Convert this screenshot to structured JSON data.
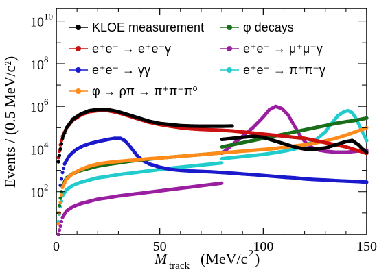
{
  "chart_data": {
    "type": "scatter",
    "xlabel": {
      "main": "M",
      "sub": "track",
      "unit": "(MeV/c",
      "unit_sup": "2",
      "unit_close": ")"
    },
    "ylabel": "Events / (0.5 MeV/c²)",
    "xlim": [
      0,
      150
    ],
    "ylim_log10": [
      0,
      10.6
    ],
    "y_scale": "log",
    "x_ticks": [
      "0",
      "50",
      "100",
      "150"
    ],
    "y_ticks": [
      {
        "base": "10",
        "exp": "2"
      },
      {
        "base": "10",
        "exp": "4"
      },
      {
        "base": "10",
        "exp": "6"
      },
      {
        "base": "10",
        "exp": "8"
      },
      {
        "base": "10",
        "exp": "10"
      }
    ],
    "legend": [
      {
        "name": "KLOE measurement",
        "color": "#000000"
      },
      {
        "name": "φ decays",
        "color": "#1a6e1a"
      },
      {
        "name": "e⁺e⁻ → e⁺e⁻γ",
        "color": "#cc1111"
      },
      {
        "name": "e⁺e⁻ → μ⁺μ⁻γ",
        "color": "#9a1fa0"
      },
      {
        "name": "e⁺e⁻ → γγ",
        "color": "#1a1acc"
      },
      {
        "name": "e⁺e⁻ → π⁺π⁻γ",
        "color": "#22cccc"
      },
      {
        "name": "φ → ρπ → π⁺π⁻π⁰",
        "color": "#ff8c1a"
      }
    ],
    "series": [
      {
        "key": "kloe",
        "color": "#000000",
        "points": [
          [
            1,
            3.4
          ],
          [
            2,
            4.0
          ],
          [
            3,
            4.5
          ],
          [
            5,
            5.0
          ],
          [
            8,
            5.4
          ],
          [
            12,
            5.65
          ],
          [
            16,
            5.8
          ],
          [
            20,
            5.85
          ],
          [
            25,
            5.85
          ],
          [
            30,
            5.75
          ],
          [
            35,
            5.6
          ],
          [
            40,
            5.45
          ],
          [
            45,
            5.3
          ],
          [
            50,
            5.2
          ],
          [
            55,
            5.15
          ],
          [
            60,
            5.1
          ],
          [
            65,
            5.08
          ],
          [
            70,
            5.07
          ],
          [
            75,
            5.07
          ],
          [
            80,
            5.07
          ],
          [
            85,
            5.08
          ]
        ]
      },
      {
        "key": "ee_eeg",
        "color": "#cc1111",
        "points": [
          [
            1,
            3.6
          ],
          [
            2,
            4.2
          ],
          [
            3,
            4.6
          ],
          [
            5,
            5.0
          ],
          [
            8,
            5.35
          ],
          [
            12,
            5.6
          ],
          [
            16,
            5.75
          ],
          [
            20,
            5.8
          ],
          [
            25,
            5.8
          ],
          [
            30,
            5.7
          ],
          [
            35,
            5.55
          ],
          [
            40,
            5.4
          ],
          [
            45,
            5.25
          ],
          [
            50,
            5.15
          ],
          [
            55,
            5.07
          ],
          [
            60,
            5.0
          ],
          [
            65,
            4.95
          ],
          [
            70,
            4.92
          ],
          [
            75,
            4.9
          ],
          [
            80,
            4.88
          ],
          [
            85,
            4.85
          ],
          [
            90,
            4.8
          ],
          [
            95,
            4.75
          ],
          [
            100,
            4.7
          ],
          [
            105,
            4.65
          ],
          [
            110,
            4.6
          ],
          [
            115,
            4.55
          ],
          [
            120,
            4.5
          ],
          [
            125,
            4.4
          ],
          [
            130,
            4.3
          ],
          [
            135,
            4.2
          ],
          [
            140,
            4.1
          ],
          [
            145,
            3.95
          ],
          [
            150,
            3.8
          ]
        ]
      },
      {
        "key": "gg",
        "color": "#1a1acc",
        "points": [
          [
            2,
            2.3
          ],
          [
            3,
            2.9
          ],
          [
            4,
            3.3
          ],
          [
            6,
            3.65
          ],
          [
            8,
            3.85
          ],
          [
            10,
            4.0
          ],
          [
            13,
            4.15
          ],
          [
            16,
            4.25
          ],
          [
            20,
            4.35
          ],
          [
            25,
            4.45
          ],
          [
            28,
            4.5
          ],
          [
            31,
            4.5
          ],
          [
            33,
            4.4
          ],
          [
            35,
            4.2
          ],
          [
            37,
            3.95
          ],
          [
            39,
            3.7
          ],
          [
            42,
            3.45
          ],
          [
            45,
            3.3
          ],
          [
            50,
            3.15
          ],
          [
            55,
            3.05
          ],
          [
            60,
            3.0
          ],
          [
            65,
            2.97
          ],
          [
            70,
            2.95
          ],
          [
            75,
            2.93
          ],
          [
            80,
            2.9
          ],
          [
            85,
            2.87
          ],
          [
            90,
            2.83
          ],
          [
            95,
            2.8
          ],
          [
            100,
            2.76
          ],
          [
            105,
            2.72
          ],
          [
            110,
            2.68
          ],
          [
            115,
            2.65
          ],
          [
            120,
            2.6
          ],
          [
            125,
            2.57
          ],
          [
            130,
            2.55
          ],
          [
            135,
            2.52
          ],
          [
            140,
            2.5
          ],
          [
            145,
            2.48
          ],
          [
            150,
            2.45
          ]
        ]
      },
      {
        "key": "phi_rhopi",
        "color": "#ff8c1a",
        "points": [
          [
            1,
            0.5
          ],
          [
            2,
            1.5
          ],
          [
            3,
            2.2
          ],
          [
            5,
            2.6
          ],
          [
            8,
            2.85
          ],
          [
            12,
            3.05
          ],
          [
            16,
            3.2
          ],
          [
            20,
            3.3
          ],
          [
            25,
            3.37
          ],
          [
            30,
            3.42
          ],
          [
            35,
            3.46
          ],
          [
            40,
            3.5
          ],
          [
            45,
            3.55
          ],
          [
            50,
            3.58
          ],
          [
            55,
            3.62
          ],
          [
            60,
            3.66
          ],
          [
            65,
            3.7
          ],
          [
            70,
            3.74
          ],
          [
            75,
            3.78
          ],
          [
            80,
            3.82
          ],
          [
            85,
            3.86
          ],
          [
            90,
            3.9
          ],
          [
            95,
            3.94
          ],
          [
            100,
            3.98
          ],
          [
            105,
            4.02
          ],
          [
            110,
            4.08
          ],
          [
            115,
            4.14
          ],
          [
            120,
            4.2
          ],
          [
            125,
            4.28
          ],
          [
            130,
            4.38
          ],
          [
            135,
            4.5
          ],
          [
            140,
            4.65
          ],
          [
            145,
            4.82
          ],
          [
            150,
            5.0
          ]
        ]
      },
      {
        "key": "phi_decays",
        "color": "#1a6e1a",
        "points": [
          [
            1,
            1.0
          ],
          [
            2,
            1.7
          ],
          [
            3,
            2.3
          ],
          [
            5,
            2.65
          ],
          [
            8,
            2.85
          ],
          [
            12,
            3.0
          ],
          [
            16,
            3.1
          ],
          [
            20,
            3.2
          ],
          [
            25,
            3.28
          ],
          [
            30,
            3.35
          ],
          [
            35,
            3.42
          ],
          [
            40,
            3.48
          ],
          [
            45,
            3.53
          ],
          [
            50,
            3.58
          ],
          [
            55,
            3.62
          ],
          [
            60,
            3.66
          ],
          [
            65,
            3.7
          ],
          [
            70,
            3.74
          ],
          [
            75,
            3.78
          ],
          [
            79.9,
            3.82
          ],
          [
            80.1,
            4.1
          ],
          [
            85,
            4.2
          ],
          [
            90,
            4.3
          ],
          [
            95,
            4.4
          ],
          [
            100,
            4.5
          ],
          [
            105,
            4.6
          ],
          [
            110,
            4.7
          ],
          [
            115,
            4.8
          ],
          [
            120,
            4.9
          ],
          [
            125,
            5.0
          ],
          [
            130,
            5.1
          ],
          [
            135,
            5.2
          ],
          [
            140,
            5.28
          ],
          [
            145,
            5.35
          ],
          [
            150,
            5.45
          ]
        ]
      },
      {
        "key": "ee_pipig",
        "color": "#22cccc",
        "points": [
          [
            1,
            0.6
          ],
          [
            2,
            1.3
          ],
          [
            3,
            1.8
          ],
          [
            5,
            2.1
          ],
          [
            8,
            2.3
          ],
          [
            12,
            2.45
          ],
          [
            16,
            2.55
          ],
          [
            20,
            2.65
          ],
          [
            25,
            2.72
          ],
          [
            30,
            2.8
          ],
          [
            35,
            2.86
          ],
          [
            40,
            2.92
          ],
          [
            45,
            2.98
          ],
          [
            50,
            3.04
          ],
          [
            55,
            3.1
          ],
          [
            60,
            3.15
          ],
          [
            65,
            3.2
          ],
          [
            70,
            3.25
          ],
          [
            75,
            3.3
          ],
          [
            79.9,
            3.35
          ],
          [
            80.1,
            3.55
          ],
          [
            85,
            3.6
          ],
          [
            90,
            3.65
          ],
          [
            95,
            3.7
          ],
          [
            100,
            3.75
          ],
          [
            105,
            3.82
          ],
          [
            110,
            3.9
          ],
          [
            115,
            4.0
          ],
          [
            120,
            4.15
          ],
          [
            125,
            4.4
          ],
          [
            130,
            4.8
          ],
          [
            133,
            5.2
          ],
          [
            136,
            5.55
          ],
          [
            139,
            5.75
          ],
          [
            141,
            5.8
          ],
          [
            143,
            5.7
          ],
          [
            145,
            5.4
          ],
          [
            147,
            5.0
          ],
          [
            149,
            4.6
          ],
          [
            150,
            4.4
          ]
        ]
      },
      {
        "key": "mumug",
        "color": "#9a1fa0",
        "points": [
          [
            1,
            0.0
          ],
          [
            2,
            0.4
          ],
          [
            3,
            0.8
          ],
          [
            5,
            1.1
          ],
          [
            8,
            1.3
          ],
          [
            12,
            1.45
          ],
          [
            16,
            1.55
          ],
          [
            20,
            1.65
          ],
          [
            25,
            1.72
          ],
          [
            30,
            1.8
          ],
          [
            35,
            1.86
          ],
          [
            40,
            1.92
          ],
          [
            45,
            1.98
          ],
          [
            50,
            2.04
          ],
          [
            55,
            2.1
          ],
          [
            60,
            2.16
          ],
          [
            65,
            2.22
          ],
          [
            70,
            2.28
          ],
          [
            75,
            2.34
          ],
          [
            79.9,
            2.4
          ],
          [
            80.1,
            3.8
          ],
          [
            85,
            4.2
          ],
          [
            90,
            4.6
          ],
          [
            95,
            5.0
          ],
          [
            100,
            5.5
          ],
          [
            103,
            5.85
          ],
          [
            106,
            6.0
          ],
          [
            109,
            5.9
          ],
          [
            112,
            5.6
          ],
          [
            115,
            5.1
          ],
          [
            118,
            4.6
          ],
          [
            121,
            4.25
          ],
          [
            124,
            4.05
          ],
          [
            127,
            3.95
          ],
          [
            130,
            3.9
          ],
          [
            135,
            3.85
          ],
          [
            140,
            3.85
          ],
          [
            145,
            3.9
          ],
          [
            150,
            3.95
          ]
        ]
      },
      {
        "key": "kloe_high",
        "color": "#000000",
        "points": [
          [
            80,
            4.45
          ],
          [
            85,
            4.5
          ],
          [
            90,
            4.55
          ],
          [
            95,
            4.6
          ],
          [
            100,
            4.55
          ],
          [
            105,
            4.4
          ],
          [
            110,
            4.25
          ],
          [
            115,
            4.1
          ],
          [
            120,
            4.0
          ],
          [
            125,
            4.0
          ],
          [
            130,
            4.05
          ],
          [
            135,
            4.2
          ],
          [
            140,
            4.35
          ],
          [
            143,
            4.4
          ],
          [
            146,
            4.2
          ],
          [
            148,
            4.0
          ],
          [
            150,
            3.85
          ]
        ]
      }
    ]
  }
}
